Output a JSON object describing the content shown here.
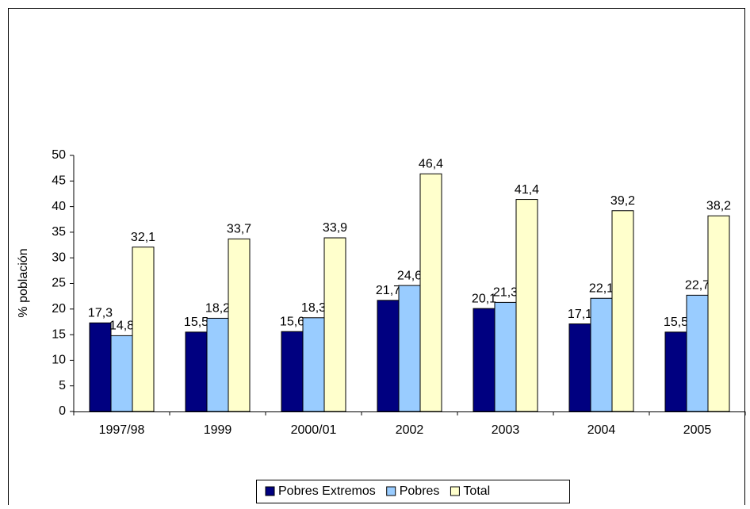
{
  "chart_data": {
    "type": "bar",
    "y_label": "% población",
    "categories": [
      "1997/98",
      "1999",
      "2000/01",
      "2002",
      "2003",
      "2004",
      "2005"
    ],
    "series": [
      {
        "name": "Pobres Extremos",
        "color": "#000080",
        "values": [
          17.3,
          15.5,
          15.6,
          21.7,
          20.1,
          17.1,
          15.5
        ],
        "value_labels": [
          "17,3",
          "15,5",
          "15,6",
          "21,7",
          "20,1",
          "17,1",
          "15,5"
        ]
      },
      {
        "name": "Pobres",
        "color": "#99ccff",
        "values": [
          14.8,
          18.2,
          18.3,
          24.6,
          21.3,
          22.1,
          22.7
        ],
        "value_labels": [
          "14,8",
          "18,2",
          "18,3",
          "24,6",
          "21,3",
          "22,1",
          "22,7"
        ]
      },
      {
        "name": "Total",
        "color": "#ffffcc",
        "values": [
          32.1,
          33.7,
          33.9,
          46.4,
          41.4,
          39.2,
          38.2
        ],
        "value_labels": [
          "32,1",
          "33,7",
          "33,9",
          "46,4",
          "41,4",
          "39,2",
          "38,2"
        ]
      }
    ],
    "ylim": [
      0,
      50
    ],
    "yticks": [
      0,
      5,
      10,
      15,
      20,
      25,
      30,
      35,
      40,
      45,
      50
    ],
    "grid": false,
    "legend": "bottom"
  }
}
